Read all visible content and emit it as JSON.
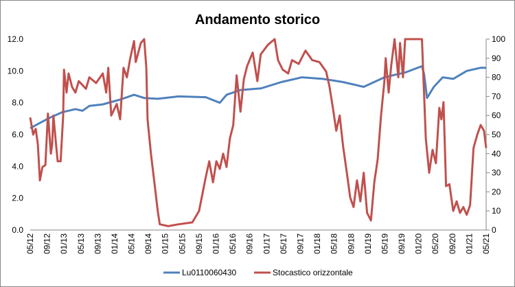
{
  "chart_data": {
    "type": "line",
    "title": "Andamento storico",
    "xlabel": "",
    "ylabel": "",
    "x_unit": "months since 05/12",
    "x_tick_labels": [
      "05/12",
      "09/12",
      "01/13",
      "05/13",
      "09/13",
      "01/14",
      "05/14",
      "09/14",
      "01/15",
      "05/15",
      "09/15",
      "01/16",
      "05/16",
      "09/16",
      "01/17",
      "05/17",
      "09/17",
      "01/18",
      "05/18",
      "09/18",
      "01/19",
      "05/19",
      "09/19",
      "01/20",
      "05/20",
      "09/20",
      "01/21",
      "05/21"
    ],
    "xlim": [
      0,
      108
    ],
    "y_left": {
      "ylim": [
        0,
        12
      ],
      "ticks": [
        "0.0",
        "2.0",
        "4.0",
        "6.0",
        "8.0",
        "10.0",
        "12.0"
      ]
    },
    "y_right": {
      "ylim": [
        0,
        100
      ],
      "ticks": [
        "0",
        "10",
        "20",
        "30",
        "40",
        "50",
        "60",
        "70",
        "80",
        "90",
        "100"
      ]
    },
    "grid": false,
    "legend_position": "bottom",
    "series": [
      {
        "name": "Lu0110060430",
        "axis": "left",
        "color": "#4F81BD",
        "x": [
          0,
          4.2,
          7.5,
          10.7,
          12.4,
          14,
          17.2,
          21.3,
          24.6,
          27,
          30.2,
          35.1,
          41.6,
          44.9,
          46.5,
          49.8,
          54.6,
          59.5,
          64.4,
          69.3,
          74.1,
          79,
          83.9,
          88.8,
          92.8,
          93.3,
          94,
          95.6,
          97.7,
          100.2,
          103.4,
          106.7,
          108
        ],
        "values": [
          6.4,
          7.0,
          7.4,
          7.6,
          7.5,
          7.8,
          7.9,
          8.2,
          8.5,
          8.3,
          8.25,
          8.4,
          8.35,
          8.0,
          8.5,
          8.8,
          8.9,
          9.3,
          9.6,
          9.5,
          9.3,
          9.0,
          9.6,
          9.9,
          10.3,
          9.8,
          8.3,
          9.0,
          9.6,
          9.5,
          10.0,
          10.2,
          10.2
        ]
      },
      {
        "name": "Stocastico orizzontale",
        "axis": "right",
        "color": "#C0504D",
        "x": [
          0,
          0.7,
          1.3,
          1.8,
          2.3,
          2.9,
          3.6,
          4.2,
          4.9,
          5.2,
          5.5,
          6.2,
          6.5,
          7.2,
          7.8,
          8.0,
          8.6,
          9.1,
          9.9,
          10.7,
          11.5,
          13.2,
          14,
          15.6,
          17.2,
          18,
          18.5,
          19.2,
          20.5,
          21.3,
          22.1,
          22.9,
          23.7,
          24.6,
          25,
          26.2,
          27,
          27.5,
          27.8,
          28.6,
          29.4,
          30.2,
          30.7,
          32.7,
          35.1,
          38.4,
          40,
          41.6,
          42.4,
          43.3,
          44.1,
          44.9,
          45.7,
          46.5,
          47.3,
          48.1,
          48.9,
          49.8,
          50.6,
          51.4,
          52.7,
          53.8,
          54.6,
          56.3,
          57.9,
          58.7,
          59.8,
          61.1,
          62,
          63.6,
          65.2,
          66.8,
          68.5,
          70.1,
          70.9,
          71.7,
          72.5,
          73.3,
          74.1,
          75,
          75.8,
          76.6,
          77.4,
          78.2,
          79,
          79.8,
          80.7,
          81.5,
          82.3,
          83.1,
          83.9,
          84.2,
          84.9,
          85.5,
          86.3,
          87.2,
          87.6,
          88.3,
          88.8,
          92.8,
          93.7,
          94.5,
          95.3,
          96.1,
          96.9,
          97.4,
          97.9,
          98.5,
          99.3,
          100.2,
          101,
          101.8,
          102.6,
          103.4,
          104.2,
          105,
          105.9,
          106.7,
          107.5,
          108
        ],
        "values": [
          59,
          50,
          53,
          45,
          26,
          33,
          34,
          61,
          40,
          45,
          60,
          43,
          36,
          36,
          60,
          84,
          72,
          82,
          75,
          72,
          78,
          74,
          80,
          77,
          82,
          72,
          85,
          60,
          66,
          58,
          85,
          80,
          90,
          99,
          88,
          98,
          100,
          85,
          58,
          40,
          25,
          10,
          3,
          2,
          3,
          4,
          10,
          28,
          36,
          25,
          36,
          32,
          40,
          33,
          48,
          55,
          81,
          62,
          79,
          86,
          93,
          78,
          92,
          97,
          100,
          89,
          84,
          82,
          89,
          87,
          94,
          89,
          88,
          83,
          75,
          64,
          52,
          60,
          44,
          30,
          17,
          12,
          26,
          15,
          30,
          9,
          5,
          25,
          37,
          60,
          78,
          90,
          72,
          86,
          100,
          80,
          98,
          80,
          100,
          100,
          48,
          30,
          42,
          35,
          64,
          58,
          67,
          23,
          24,
          10,
          15,
          9,
          12,
          8,
          13,
          43,
          50,
          55,
          52,
          43
        ]
      }
    ]
  }
}
